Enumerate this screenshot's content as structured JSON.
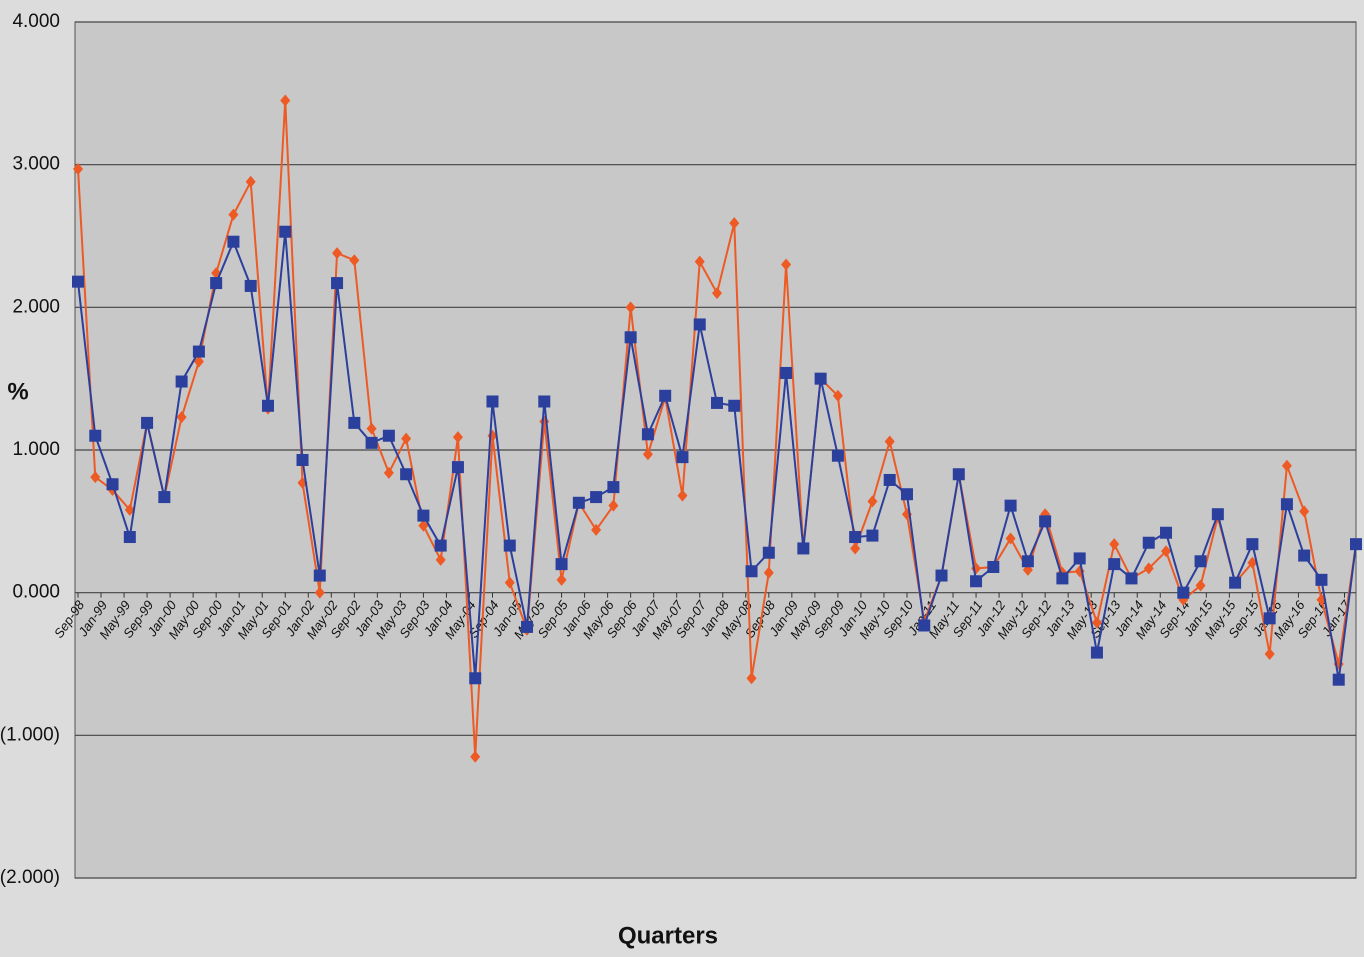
{
  "chart_data": {
    "type": "line",
    "ylabel": "%",
    "xlabel": "Quarters",
    "x": [
      "1998-09",
      "1998-12",
      "1999-03",
      "1999-06",
      "1999-09",
      "1999-12",
      "2000-03",
      "2000-06",
      "2000-09",
      "2000-12",
      "2001-03",
      "2001-06",
      "2001-09",
      "2001-12",
      "2002-03",
      "2002-06",
      "2002-09",
      "2002-12",
      "2003-03",
      "2003-06",
      "2003-09",
      "2003-12",
      "2004-03",
      "2004-06",
      "2004-09",
      "2004-12",
      "2005-03",
      "2005-06",
      "2005-09",
      "2005-12",
      "2006-03",
      "2006-06",
      "2006-09",
      "2006-12",
      "2007-03",
      "2007-06",
      "2007-09",
      "2007-12",
      "2008-03",
      "2008-06",
      "2008-09",
      "2008-12",
      "2009-03",
      "2009-06",
      "2009-09",
      "2009-12",
      "2010-03",
      "2010-06",
      "2010-09",
      "2010-12",
      "2011-03",
      "2011-06",
      "2011-09",
      "2011-12",
      "2012-03",
      "2012-06",
      "2012-09",
      "2012-12",
      "2013-03",
      "2013-06",
      "2013-09",
      "2013-12",
      "2014-03",
      "2014-06",
      "2014-09",
      "2014-12",
      "2015-03",
      "2015-06",
      "2015-09",
      "2015-12",
      "2016-03",
      "2016-06",
      "2016-09",
      "2016-12",
      "2017-03"
    ],
    "series": [
      {
        "color": "#ee5a24",
        "marker": "diamond",
        "values": [
          2.97,
          0.81,
          0.72,
          0.58,
          1.19,
          0.67,
          1.23,
          1.62,
          2.24,
          2.65,
          2.88,
          1.29,
          3.45,
          0.77,
          0.0,
          2.38,
          2.33,
          1.15,
          0.84,
          1.08,
          0.47,
          0.23,
          1.09,
          -1.15,
          1.1,
          0.07,
          -0.26,
          1.2,
          0.09,
          0.63,
          0.44,
          0.61,
          2.0,
          0.97,
          1.37,
          0.68,
          2.32,
          2.1,
          2.59,
          -0.6,
          0.14,
          2.3,
          0.31,
          1.5,
          1.38,
          0.31,
          0.64,
          1.06,
          0.55,
          -0.2,
          0.12,
          0.83,
          0.17,
          0.18,
          0.38,
          0.16,
          0.55,
          0.14,
          0.15,
          -0.21,
          0.34,
          0.1,
          0.17,
          0.29,
          -0.05,
          0.05,
          0.53,
          0.07,
          0.21,
          -0.43,
          0.89,
          0.57,
          -0.05,
          -0.5,
          0.34
        ]
      },
      {
        "color": "#2b3f9c",
        "marker": "square",
        "values": [
          2.18,
          1.1,
          0.76,
          0.39,
          1.19,
          0.67,
          1.48,
          1.69,
          2.17,
          2.46,
          2.15,
          1.31,
          2.53,
          0.93,
          0.12,
          2.17,
          1.19,
          1.05,
          1.1,
          0.83,
          0.54,
          0.33,
          0.88,
          -0.6,
          1.34,
          0.33,
          -0.24,
          1.34,
          0.2,
          0.63,
          0.67,
          0.74,
          1.79,
          1.11,
          1.38,
          0.95,
          1.88,
          1.33,
          1.31,
          0.15,
          0.28,
          1.54,
          0.31,
          1.5,
          0.96,
          0.39,
          0.4,
          0.79,
          0.69,
          -0.23,
          0.12,
          0.83,
          0.08,
          0.18,
          0.61,
          0.22,
          0.5,
          0.1,
          0.24,
          -0.42,
          0.2,
          0.1,
          0.35,
          0.42,
          0.0,
          0.22,
          0.55,
          0.07,
          0.34,
          -0.18,
          0.62,
          0.26,
          0.09,
          -0.61,
          0.34
        ]
      }
    ],
    "xlim": [
      "1998-09",
      "2017-03"
    ],
    "xticks": [
      {
        "value": "1998-09",
        "label": "Sep-98"
      },
      {
        "value": "1999-01",
        "label": "Jan-99"
      },
      {
        "value": "1999-05",
        "label": "May-99"
      },
      {
        "value": "1999-09",
        "label": "Sep-99"
      },
      {
        "value": "2000-01",
        "label": "Jan-00"
      },
      {
        "value": "2000-05",
        "label": "May-00"
      },
      {
        "value": "2000-09",
        "label": "Sep-00"
      },
      {
        "value": "2001-01",
        "label": "Jan-01"
      },
      {
        "value": "2001-05",
        "label": "May-01"
      },
      {
        "value": "2001-09",
        "label": "Sep-01"
      },
      {
        "value": "2002-01",
        "label": "Jan-02"
      },
      {
        "value": "2002-05",
        "label": "May-02"
      },
      {
        "value": "2002-09",
        "label": "Sep-02"
      },
      {
        "value": "2003-01",
        "label": "Jan-03"
      },
      {
        "value": "2003-05",
        "label": "May-03"
      },
      {
        "value": "2003-09",
        "label": "Sep-03"
      },
      {
        "value": "2004-01",
        "label": "Jan-04"
      },
      {
        "value": "2004-05",
        "label": "May-04"
      },
      {
        "value": "2004-09",
        "label": "Sep-04"
      },
      {
        "value": "2005-01",
        "label": "Jan-05"
      },
      {
        "value": "2005-05",
        "label": "May-05"
      },
      {
        "value": "2005-09",
        "label": "Sep-05"
      },
      {
        "value": "2006-01",
        "label": "Jan-06"
      },
      {
        "value": "2006-05",
        "label": "May-06"
      },
      {
        "value": "2006-09",
        "label": "Sep-06"
      },
      {
        "value": "2007-01",
        "label": "Jan-07"
      },
      {
        "value": "2007-05",
        "label": "May-07"
      },
      {
        "value": "2007-09",
        "label": "Sep-07"
      },
      {
        "value": "2008-01",
        "label": "Jan-08"
      },
      {
        "value": "2008-05",
        "label": "May-08"
      },
      {
        "value": "2008-09",
        "label": "Sep-08"
      },
      {
        "value": "2009-01",
        "label": "Jan-09"
      },
      {
        "value": "2009-05",
        "label": "May-09"
      },
      {
        "value": "2009-09",
        "label": "Sep-09"
      },
      {
        "value": "2010-01",
        "label": "Jan-10"
      },
      {
        "value": "2010-05",
        "label": "May-10"
      },
      {
        "value": "2010-09",
        "label": "Sep-10"
      },
      {
        "value": "2011-01",
        "label": "Jan-11"
      },
      {
        "value": "2011-05",
        "label": "May-11"
      },
      {
        "value": "2011-09",
        "label": "Sep-11"
      },
      {
        "value": "2012-01",
        "label": "Jan-12"
      },
      {
        "value": "2012-05",
        "label": "May-12"
      },
      {
        "value": "2012-09",
        "label": "Sep-12"
      },
      {
        "value": "2013-01",
        "label": "Jan-13"
      },
      {
        "value": "2013-05",
        "label": "May-13"
      },
      {
        "value": "2013-09",
        "label": "Sep-13"
      },
      {
        "value": "2014-01",
        "label": "Jan-14"
      },
      {
        "value": "2014-05",
        "label": "May-14"
      },
      {
        "value": "2014-09",
        "label": "Sep-14"
      },
      {
        "value": "2015-01",
        "label": "Jan-15"
      },
      {
        "value": "2015-05",
        "label": "May-15"
      },
      {
        "value": "2015-09",
        "label": "Sep-15"
      },
      {
        "value": "2016-01",
        "label": "Jan-16"
      },
      {
        "value": "2016-05",
        "label": "May-16"
      },
      {
        "value": "2016-09",
        "label": "Sep-16"
      },
      {
        "value": "2017-01",
        "label": "Jan-17"
      }
    ],
    "ylim": [
      -2,
      4
    ],
    "yticks": [
      {
        "value": 4,
        "label": "4.000"
      },
      {
        "value": 3,
        "label": "3.000"
      },
      {
        "value": 2,
        "label": "2.000"
      },
      {
        "value": 1,
        "label": "1.000"
      },
      {
        "value": 0,
        "label": "0.000"
      },
      {
        "value": -1,
        "label": "(1.000)"
      },
      {
        "value": -2,
        "label": "(2.000)"
      }
    ],
    "negative_tick_color": "#c0392b",
    "grid": true
  }
}
